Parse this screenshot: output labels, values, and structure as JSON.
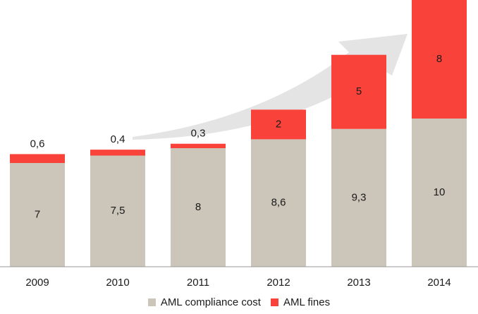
{
  "chart_data": {
    "type": "bar",
    "stacked": true,
    "categories": [
      "2009",
      "2010",
      "2011",
      "2012",
      "2013",
      "2014"
    ],
    "series": [
      {
        "name": "AML compliance cost",
        "color": "#ccc5b9",
        "values": [
          7,
          7.5,
          8,
          8.6,
          9.3,
          10
        ],
        "labels": [
          "7",
          "7,5",
          "8",
          "8,6",
          "9,3",
          "10"
        ]
      },
      {
        "name": "AML fines",
        "color": "#f9423a",
        "values": [
          0.6,
          0.4,
          0.3,
          2,
          5,
          8
        ],
        "labels": [
          "0,6",
          "0,4",
          "0,3",
          "2",
          "5",
          "8"
        ]
      }
    ],
    "ylim": [
      0,
      18
    ],
    "grid": false,
    "legend": "bottom",
    "axis_color": "#999999",
    "arrow_color": "#e4e4e4"
  }
}
